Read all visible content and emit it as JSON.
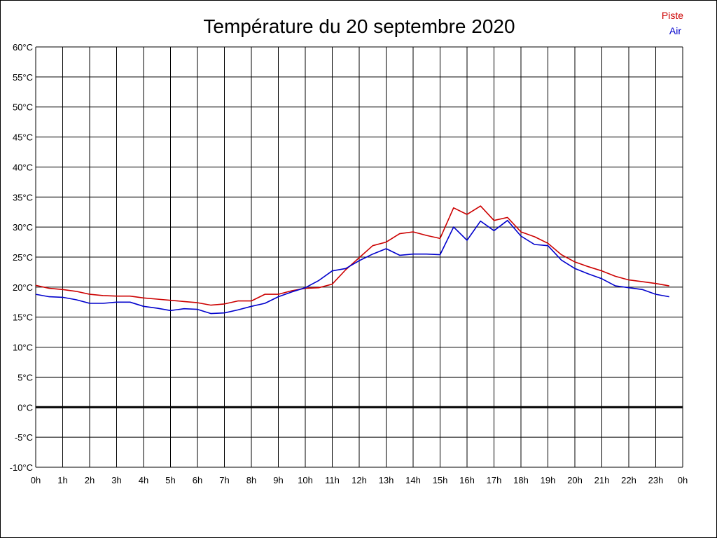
{
  "chart_data": {
    "type": "line",
    "title": "Température du 20 septembre 2020",
    "xlabel": "",
    "ylabel": "",
    "x_tick_labels": [
      "0h",
      "1h",
      "2h",
      "3h",
      "4h",
      "5h",
      "6h",
      "7h",
      "8h",
      "9h",
      "10h",
      "11h",
      "12h",
      "13h",
      "14h",
      "15h",
      "16h",
      "17h",
      "18h",
      "19h",
      "20h",
      "21h",
      "22h",
      "23h",
      "0h"
    ],
    "y_tick_labels": [
      "60°C",
      "55°C",
      "50°C",
      "45°C",
      "40°C",
      "35°C",
      "30°C",
      "25°C",
      "20°C",
      "15°C",
      "10°C",
      "5°C",
      "0°C",
      "-5°C",
      "-10°C"
    ],
    "xlim": [
      0,
      24
    ],
    "ylim": [
      -10,
      60
    ],
    "grid": true,
    "legend_position": "top-right",
    "x": [
      0,
      0.5,
      1,
      1.5,
      2,
      2.5,
      3,
      3.5,
      4,
      4.5,
      5,
      5.5,
      6,
      6.5,
      7,
      7.5,
      8,
      8.5,
      9,
      9.5,
      10,
      10.5,
      11,
      11.5,
      12,
      12.5,
      13,
      13.5,
      14,
      14.5,
      15,
      15.5,
      16,
      16.5,
      17,
      17.5,
      18,
      18.5,
      19,
      19.5,
      20,
      20.5,
      21,
      21.5,
      22,
      22.5,
      23,
      23.5
    ],
    "series": [
      {
        "name": "Piste",
        "color": "#cc0000",
        "values": [
          20.3,
          19.8,
          19.6,
          19.3,
          18.8,
          18.6,
          18.5,
          18.5,
          18.2,
          18.0,
          17.8,
          17.6,
          17.4,
          17.0,
          17.2,
          17.7,
          17.7,
          18.8,
          18.8,
          19.4,
          19.8,
          19.9,
          20.5,
          22.9,
          24.9,
          26.9,
          27.5,
          28.9,
          29.2,
          28.6,
          28.1,
          33.2,
          32.1,
          33.5,
          31.1,
          31.6,
          29.2,
          28.4,
          27.3,
          25.4,
          24.2,
          23.4,
          22.7,
          21.8,
          21.2,
          20.9,
          20.6,
          20.2
        ]
      },
      {
        "name": "Air",
        "color": "#0000cc",
        "values": [
          18.8,
          18.4,
          18.3,
          17.9,
          17.3,
          17.3,
          17.5,
          17.5,
          16.8,
          16.5,
          16.1,
          16.4,
          16.3,
          15.6,
          15.7,
          16.2,
          16.8,
          17.3,
          18.4,
          19.2,
          19.9,
          21.1,
          22.7,
          23.1,
          24.4,
          25.5,
          26.4,
          25.3,
          25.5,
          25.5,
          25.4,
          30.0,
          27.8,
          31.0,
          29.4,
          31.1,
          28.5,
          27.1,
          26.9,
          24.5,
          23.1,
          22.2,
          21.4,
          20.2,
          19.9,
          19.6,
          18.8,
          18.4
        ]
      }
    ]
  }
}
